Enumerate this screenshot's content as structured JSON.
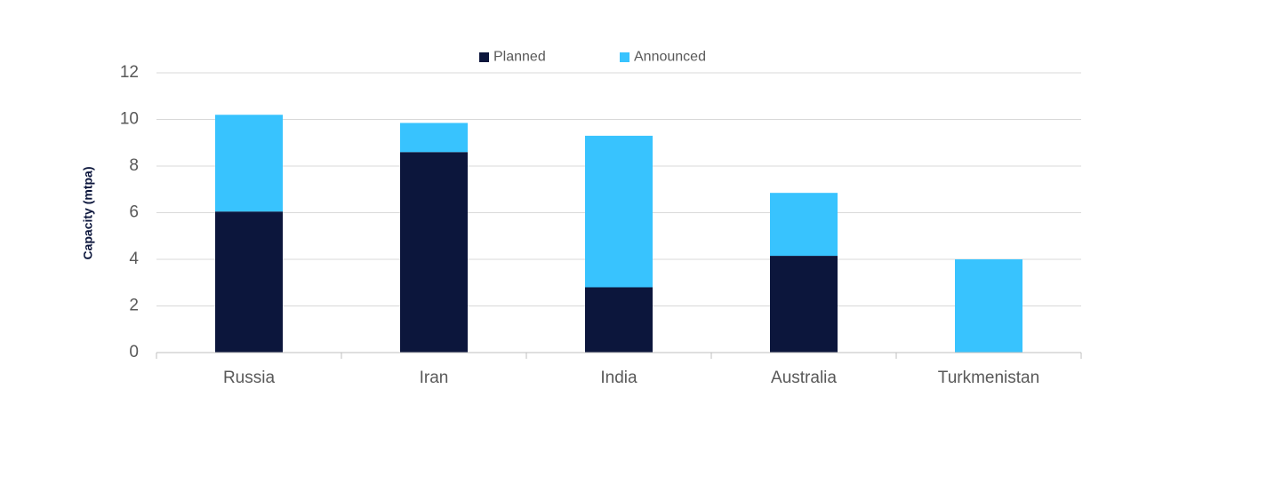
{
  "chart_data": {
    "type": "bar",
    "stacked": true,
    "title": "",
    "xlabel": "",
    "ylabel": "Capacity (mtpa)",
    "ylim": [
      0,
      12
    ],
    "yticks": [
      0,
      2,
      4,
      6,
      8,
      10,
      12
    ],
    "grid": true,
    "legend_position": "top-center",
    "categories": [
      "Russia",
      "Iran",
      "India",
      "Australia",
      "Turkmenistan"
    ],
    "series": [
      {
        "name": "Planned",
        "color": "#0c163c",
        "values": [
          6.05,
          8.6,
          2.8,
          4.15,
          0
        ]
      },
      {
        "name": "Announced",
        "color": "#38c3fe",
        "values": [
          4.15,
          1.25,
          6.5,
          2.7,
          4.0
        ]
      }
    ],
    "ylabel_color": "#0c163c"
  }
}
